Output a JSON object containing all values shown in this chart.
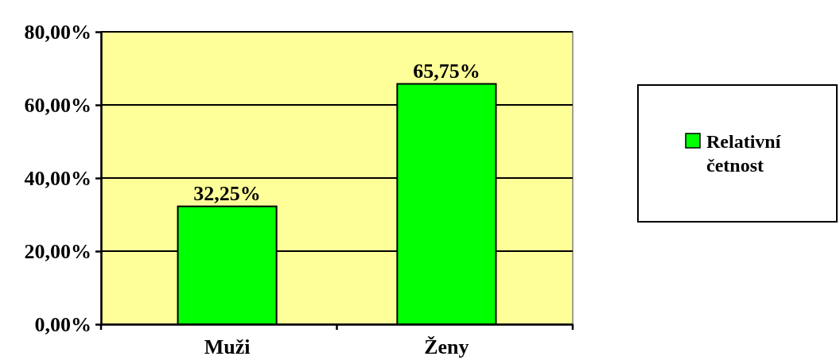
{
  "chart_data": {
    "type": "bar",
    "categories": [
      "Muži",
      "Ženy"
    ],
    "series": [
      {
        "name": "Relativní četnost",
        "color": "#00ff00",
        "values": [
          32.25,
          65.75
        ],
        "value_labels": [
          "32,25%",
          "65,75%"
        ]
      }
    ],
    "ylim": [
      0,
      80
    ],
    "yticks": [
      {
        "value": 0,
        "label": "0,00%"
      },
      {
        "value": 20,
        "label": "20,00%"
      },
      {
        "value": 40,
        "label": "40,00%"
      },
      {
        "value": 60,
        "label": "60,00%"
      },
      {
        "value": 80,
        "label": "80,00%"
      }
    ],
    "grid": "y",
    "legend": "right"
  }
}
